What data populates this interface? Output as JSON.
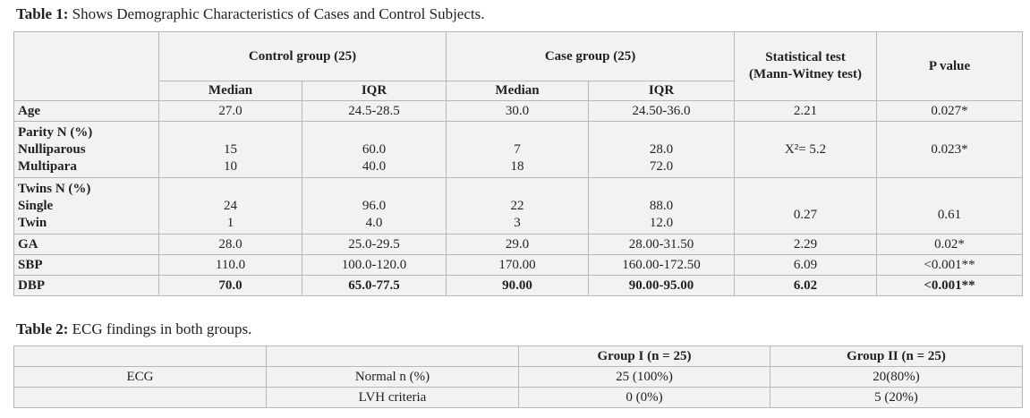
{
  "table1": {
    "caption_bold": "Table 1:",
    "caption_text": " Shows Demographic Characteristics of Cases and Control Subjects.",
    "headers": {
      "control_group": "Control group (25)",
      "case_group": "Case group (25)",
      "stat_test_line1": "Statistical test",
      "stat_test_line2": "(Mann-Witney test)",
      "p_value": "P value",
      "median": "Median",
      "iqr": "IQR"
    },
    "rows": {
      "age": {
        "label": "Age",
        "ctrl_median": "27.0",
        "ctrl_iqr": "24.5-28.5",
        "case_median": "30.0",
        "case_iqr": "24.50-36.0",
        "stat": "2.21",
        "p": "0.027*"
      },
      "parity": {
        "label": "Parity N (%)",
        "sub1": "Nulliparous",
        "sub2": "Multipara",
        "ctrl_median_1": "15",
        "ctrl_median_2": "10",
        "ctrl_iqr_1": "60.0",
        "ctrl_iqr_2": "40.0",
        "case_median_1": "7",
        "case_median_2": "18",
        "case_iqr_1": "28.0",
        "case_iqr_2": "72.0",
        "stat": "X²= 5.2",
        "p": "0.023*"
      },
      "twins": {
        "label": "Twins N (%)",
        "sub1": "Single",
        "sub2": "Twin",
        "ctrl_median_1": "24",
        "ctrl_median_2": "1",
        "ctrl_iqr_1": "96.0",
        "ctrl_iqr_2": "4.0",
        "case_median_1": "22",
        "case_median_2": "3",
        "case_iqr_1": "88.0",
        "case_iqr_2": "12.0",
        "stat": "0.27",
        "p": "0.61"
      },
      "ga": {
        "label": "GA",
        "ctrl_median": "28.0",
        "ctrl_iqr": "25.0-29.5",
        "case_median": "29.0",
        "case_iqr": "28.00-31.50",
        "stat": "2.29",
        "p": "0.02*"
      },
      "sbp": {
        "label": "SBP",
        "ctrl_median": "110.0",
        "ctrl_iqr": "100.0-120.0",
        "case_median": "170.00",
        "case_iqr": "160.00-172.50",
        "stat": "6.09",
        "p": "<0.001**"
      },
      "dbp": {
        "label": "DBP",
        "ctrl_median": "70.0",
        "ctrl_iqr": "65.0-77.5",
        "case_median": "90.00",
        "case_iqr": "90.00-95.00",
        "stat": "6.02",
        "p": "<0.001**"
      }
    }
  },
  "table2": {
    "caption_bold": "Table 2:",
    "caption_text": " ECG findings in both groups.",
    "headers": {
      "group1": "Group I (n = 25)",
      "group2": "Group II (n = 25)"
    },
    "row_label": "ECG",
    "rows": [
      {
        "finding": "Normal n (%)",
        "group1": "25 (100%)",
        "group2": "20(80%)"
      },
      {
        "finding": "LVH criteria",
        "group1": "0 (0%)",
        "group2": "5 (20%)"
      }
    ]
  }
}
